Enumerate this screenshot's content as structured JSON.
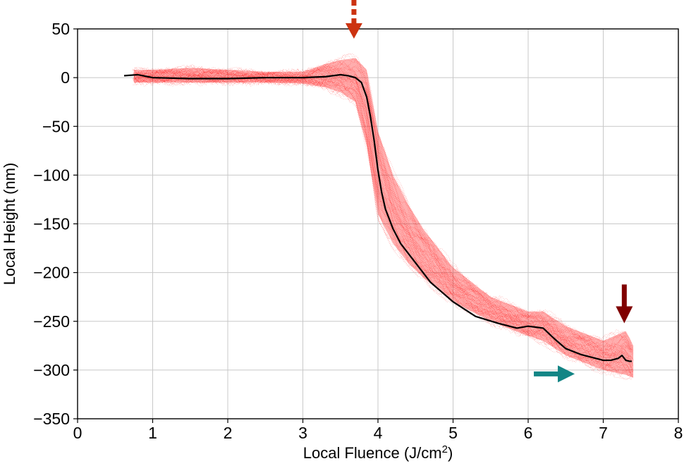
{
  "chart_data": {
    "type": "line",
    "title": "",
    "xlabel": "Local Fluence (J/cm",
    "xlabel_sup": "2",
    "xlabel_close": ")",
    "ylabel": "Local Height (nm)",
    "xlim": [
      0,
      8
    ],
    "ylim": [
      -350,
      50
    ],
    "x_ticks": [
      0,
      1,
      2,
      3,
      4,
      5,
      6,
      7,
      8
    ],
    "y_ticks": [
      50,
      0,
      -50,
      -100,
      -150,
      -200,
      -250,
      -300,
      -350
    ],
    "x_tick_labels": [
      "0",
      "1",
      "2",
      "3",
      "4",
      "5",
      "6",
      "7",
      "8"
    ],
    "y_tick_labels": [
      "50",
      "0",
      "−50",
      "−100",
      "−150",
      "−200",
      "−250",
      "−300",
      "−350"
    ],
    "grid": true,
    "series": [
      {
        "color": "#000000",
        "x": [
          0.62,
          0.8,
          1.0,
          1.5,
          2.0,
          2.5,
          3.0,
          3.3,
          3.5,
          3.6,
          3.7,
          3.78,
          3.85,
          3.9,
          3.95,
          4.0,
          4.05,
          4.1,
          4.2,
          4.3,
          4.5,
          4.7,
          5.0,
          5.3,
          5.6,
          5.85,
          6.0,
          6.2,
          6.35,
          6.5,
          6.7,
          6.9,
          7.0,
          7.1,
          7.2,
          7.25,
          7.3,
          7.35,
          7.38
        ],
        "y": [
          2,
          3,
          0,
          -1,
          -1,
          0,
          0,
          1,
          3,
          2,
          0,
          -5,
          -20,
          -40,
          -65,
          -95,
          -118,
          -135,
          -155,
          -170,
          -190,
          -210,
          -230,
          -245,
          -252,
          -257,
          -255,
          -257,
          -268,
          -278,
          -284,
          -288,
          -290,
          -290,
          -288,
          -285,
          -290,
          -291,
          -291
        ]
      },
      {
        "color": "#ff0000",
        "band": true,
        "x": [
          0.75,
          1.0,
          1.5,
          2.0,
          2.5,
          3.0,
          3.3,
          3.5,
          3.7,
          3.85,
          4.0,
          4.2,
          4.4,
          4.6,
          5.0,
          5.5,
          6.0,
          6.2,
          6.5,
          7.0,
          7.3,
          7.4
        ],
        "y_upper": [
          8,
          8,
          10,
          8,
          6,
          6,
          14,
          18,
          20,
          8,
          -55,
          -100,
          -130,
          -155,
          -195,
          -225,
          -240,
          -240,
          -255,
          -270,
          -260,
          -275
        ],
        "y_lower": [
          -5,
          -5,
          -5,
          -5,
          -5,
          -6,
          -10,
          -15,
          -25,
          -70,
          -140,
          -170,
          -190,
          -205,
          -230,
          -250,
          -265,
          -270,
          -285,
          -300,
          -305,
          -308
        ]
      }
    ],
    "annotations": [
      {
        "type": "dashed-arrow-down",
        "color": "#cc3311",
        "x": 3.68,
        "y_tip": 40
      },
      {
        "type": "arrow-down",
        "color": "#800000",
        "x": 7.28,
        "y_tip": -252
      },
      {
        "type": "arrow-right",
        "color": "#138585",
        "x_tip": 6.62,
        "y": -304
      }
    ]
  }
}
